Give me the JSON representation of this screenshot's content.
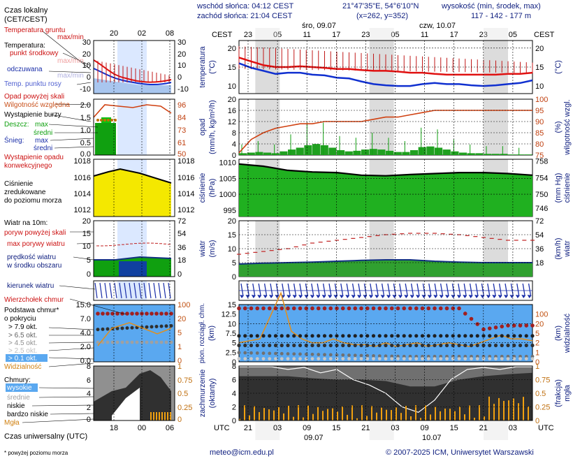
{
  "header": {
    "left_title": "Czas lokalny",
    "left_sub": "(CET/CEST)",
    "sunrise": "wschód słońca: 04:12 CEST",
    "sunset": "zachód słońca: 21:04 CEST",
    "coords": "21°47'35\"E, 54°6'10\"N",
    "grid": "(x=262, y=352)",
    "height_label": "wysokość (min, środek, max)",
    "height_values": "117 - 142 - 177 m",
    "tz": "CEST",
    "day1": "śro, 09.07",
    "day2": "czw, 10.07"
  },
  "top_hours": [
    "23",
    "05",
    "11",
    "17",
    "23",
    "05",
    "11",
    "17",
    "23",
    "05"
  ],
  "mini_top_hours": [
    "20",
    "02",
    "08"
  ],
  "bottom_hours": [
    "21",
    "03",
    "09",
    "15",
    "21",
    "03",
    "09",
    "15",
    "21",
    "03"
  ],
  "mini_bottom_hours": [
    "18",
    "00",
    "06"
  ],
  "utc": "UTC",
  "date1": "09.07",
  "date2": "10.07",
  "footer": {
    "left": "Czas uniwersalny (UTC)",
    "note": "* powyżej poziomu morza",
    "email": "meteo@icm.edu.pl",
    "copyright": "© 2007-2025 ICM, Uniwersytet Warszawski"
  },
  "legend": {
    "soil": "Temperatura gruntu",
    "soil_mm": "max/min",
    "temp_hdr": "Temperatura:",
    "temp_mid": "punkt środkowy",
    "temp_mm": "max/min",
    "perceived": "odczuwana",
    "perceived_mm": "max/min",
    "dew": "Temp. punktu rosy",
    "precip_over": "Opad powyżej skali",
    "humidity": "Wilgotność względna",
    "storm": "Wystąpienie burzy",
    "rain_hdr": "Deszcz:",
    "rain_max": "max",
    "rain_mid": "średni",
    "snow_hdr": "Śnieg:",
    "snow_max": "max",
    "snow_mid": "średni",
    "conv1": "Wystąpienie opadu",
    "conv2": "konwekcyjnego",
    "press1": "Ciśnienie",
    "press2": "zredukowane",
    "press3": "do poziomu morza",
    "wind_hdr": "Wiatr na 10m:",
    "gust_over": "poryw powyżej skali",
    "gust_max": "max porywy wiatru",
    "wind_mean1": "prędkość wiatru",
    "wind_mean2": "w środku obszaru",
    "wind_dir": "kierunek wiatru",
    "cloud_top": "Wierzchołek chmur",
    "cloud_base1": "Podstawa chmur*",
    "cloud_base2": "o pokryciu",
    "ok79": "> 7.9 okt.",
    "ok65": "> 6.5 okt.",
    "ok45": "> 4.5 okt.",
    "ok25": "> 2.5 okt.",
    "ok01": "> 0.1 okt.",
    "visibility": "Widzialność",
    "clouds_hdr": "Chmury:",
    "cl_high": "wysokie",
    "cl_mid": "średnie",
    "cl_low": "niskie",
    "cl_vlow": "bardzo niskie",
    "fog": "Mgła"
  },
  "panel_labels": {
    "temp_l1": "temperatura",
    "temp_l2": "(°C)",
    "temp_r": "(°C)",
    "precip_l1": "opad",
    "precip_l2": "(mm/h, kg/m²/h)",
    "precip_r1": "(%)",
    "precip_r2": "wilgotność wzgl.",
    "press_l1": "ciśnienie",
    "press_l2": "(hPa)",
    "press_r1": "(mm Hg)",
    "press_r2": "ciśnienie",
    "wind_l1": "wiatr",
    "wind_l2": "(m/s)",
    "wind_r1": "(km/h)",
    "wind_r2": "wiatr",
    "cloud_l1": "pion. rozciągł. chm.",
    "cloud_l2": "(km)",
    "cloud_r1": "(km)",
    "cloud_r2": "widzialność",
    "cover_l1": "zachmurzenie",
    "cover_l2": "(oktanty)",
    "cover_r1": "(frakcja)",
    "cover_r2": "mgła"
  },
  "colors": {
    "temp": "#e01010",
    "perceived": "#1030d0",
    "dew": "#6080ff",
    "humidity": "#d04010",
    "rain": "#10a010",
    "pressure": "#10c010",
    "gust": "#c02020",
    "wind": "#103080",
    "cloud_top": "#a02020",
    "visibility": "#e09020",
    "cloudsky": "#5aa8f0",
    "night": "#d8d8d8"
  },
  "chart_data": [
    {
      "type": "line",
      "name_hint": "temperature",
      "x_hours": [
        0,
        3,
        6,
        9,
        12,
        15,
        18,
        21,
        24,
        27,
        30,
        33,
        36,
        39,
        42,
        45,
        48,
        51,
        54,
        57,
        60,
        63,
        66,
        69,
        72
      ],
      "series": [
        {
          "name": "punkt środkowy",
          "values": [
            17.5,
            16.5,
            15.5,
            15.0,
            15.0,
            15.2,
            15.0,
            14.8,
            14.5,
            14.5,
            14.2,
            14.0,
            14.0,
            13.8,
            13.5,
            13.5,
            13.2,
            13.0,
            13.0,
            13.0,
            13.0,
            13.0,
            13.2,
            13.2,
            13.5
          ]
        },
        {
          "name": "odczuwana",
          "values": [
            16.0,
            14.8,
            14.0,
            13.2,
            13.5,
            13.5,
            13.0,
            12.8,
            12.2,
            12.0,
            11.2,
            10.5,
            10.2,
            10.0,
            10.0,
            10.5,
            10.8,
            10.5,
            10.5,
            10.2,
            10.0,
            10.2,
            10.5,
            10.8,
            11.5
          ]
        }
      ],
      "ylim": [
        8,
        22
      ]
    },
    {
      "type": "line",
      "name_hint": "relative humidity",
      "x_hours": [
        0,
        3,
        6,
        9,
        12,
        15,
        18,
        21,
        24,
        27,
        30,
        33,
        36,
        39,
        42,
        45,
        48,
        51,
        54,
        57,
        60,
        63,
        66,
        69,
        72
      ],
      "values": [
        76,
        82,
        85,
        87,
        88,
        89,
        89,
        90,
        90,
        90,
        90,
        91,
        92,
        92,
        93,
        94,
        95,
        95,
        95,
        95,
        95,
        95,
        95,
        95,
        95
      ],
      "ylim": [
        75,
        100
      ]
    },
    {
      "type": "line",
      "name_hint": "pressure",
      "x_hours": [
        0,
        6,
        12,
        18,
        24,
        30,
        36,
        42,
        48,
        54,
        60,
        66,
        72
      ],
      "values": [
        1009.5,
        1008.8,
        1007.5,
        1007.0,
        1006.8,
        1006.0,
        1005.8,
        1006.2,
        1006.5,
        1006.8,
        1006.8,
        1006.5,
        1006.0
      ],
      "ylim": [
        993,
        1011
      ]
    },
    {
      "type": "line",
      "name_hint": "wind",
      "x_hours": [
        0,
        6,
        12,
        18,
        24,
        30,
        36,
        42,
        48,
        54,
        60,
        66,
        72
      ],
      "series": [
        {
          "name": "max porywy wiatru",
          "values": [
            8,
            9,
            10,
            12,
            13,
            14,
            15,
            15.5,
            15.5,
            15,
            14,
            13,
            13
          ]
        },
        {
          "name": "prędkość wiatru",
          "values": [
            4.5,
            4.8,
            5,
            5.2,
            5.5,
            5.8,
            6,
            6,
            5.5,
            5.2,
            5,
            5,
            5
          ]
        }
      ],
      "ylim": [
        0,
        20
      ]
    },
    {
      "type": "scatter",
      "name_hint": "cloud top and visibility",
      "x_hours": [
        0,
        6,
        12,
        18,
        24,
        30,
        36,
        42,
        48,
        54,
        60,
        66,
        72
      ],
      "series": [
        {
          "name": "Wierzchołek chmur",
          "values": [
            14,
            14,
            14,
            14,
            14,
            14,
            14,
            14,
            14,
            14,
            8.5,
            9.5,
            9.5
          ]
        },
        {
          "name": "Widzialność",
          "values": [
            7,
            7,
            9,
            6,
            7,
            5,
            4,
            4,
            5,
            4,
            4,
            7,
            6
          ]
        }
      ],
      "ylim": [
        0,
        15
      ]
    },
    {
      "type": "area",
      "name_hint": "cloud cover",
      "x_hours": [
        0,
        6,
        12,
        18,
        24,
        30,
        36,
        42,
        48,
        54,
        60,
        66,
        72
      ],
      "values": [
        6.5,
        6.5,
        6.5,
        6.2,
        6,
        6,
        5.8,
        5,
        5,
        6,
        6.5,
        6.8,
        7
      ],
      "ylim": [
        0,
        8
      ]
    }
  ]
}
